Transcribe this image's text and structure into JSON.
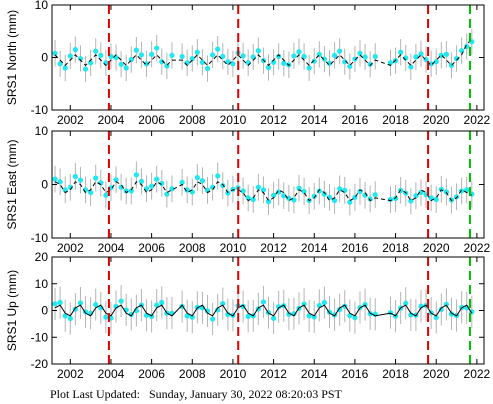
{
  "chart_data": [
    {
      "type": "scatter",
      "ylabel": "SRS1 North (mm)",
      "x": [
        2001.25,
        2001.5,
        2001.75,
        2002,
        2002.25,
        2002.5,
        2002.75,
        2003,
        2003.25,
        2003.5,
        2003.75,
        2004,
        2004.25,
        2004.5,
        2004.75,
        2005,
        2005.25,
        2005.5,
        2005.75,
        2006,
        2006.25,
        2006.5,
        2006.75,
        2007,
        2007.5,
        2007.75,
        2008,
        2008.25,
        2008.5,
        2008.75,
        2009,
        2009.25,
        2009.5,
        2009.75,
        2010,
        2010.25,
        2010.5,
        2010.75,
        2011,
        2011.25,
        2011.5,
        2011.75,
        2012,
        2012.25,
        2012.5,
        2012.75,
        2013,
        2013.25,
        2013.5,
        2013.75,
        2014,
        2014.25,
        2014.5,
        2014.75,
        2015,
        2015.25,
        2015.5,
        2015.75,
        2016,
        2016.25,
        2016.5,
        2016.75,
        2017,
        2017.75,
        2018,
        2018.25,
        2018.5,
        2018.75,
        2019,
        2019.25,
        2019.5,
        2019.75,
        2020,
        2020.25,
        2020.5,
        2020.75,
        2021,
        2021.25,
        2021.5,
        2021.75
      ],
      "xlim": [
        2001.1,
        2022.35
      ],
      "xticks": [
        2002,
        2004,
        2006,
        2008,
        2010,
        2012,
        2014,
        2016,
        2018,
        2020,
        2022
      ],
      "ylim": [
        -10,
        10
      ],
      "yticks": [
        -10,
        0,
        10
      ],
      "series": [
        {
          "color": "#1ee8f0",
          "error": 2.5,
          "error_color": "#b4b4b4",
          "values": [
            0.8,
            -1.2,
            -2.0,
            0.3,
            1.5,
            -0.2,
            -2.2,
            -1.0,
            1.2,
            0.4,
            -1.0,
            0.2,
            0.0,
            -1.3,
            -2.0,
            -0.4,
            1.4,
            0.5,
            -1.2,
            0.6,
            1.8,
            -0.8,
            -1.6,
            0.4,
            0.2,
            -1.0,
            -0.2,
            1.0,
            -0.9,
            -2.1,
            0.5,
            1.6,
            0.2,
            -0.8,
            -1.2,
            0.9,
            0.3,
            -1.0,
            0.1,
            1.3,
            -0.6,
            -1.9,
            -0.9,
            0.2,
            -1.1,
            -1.4,
            0.3,
            1.1,
            0.2,
            -2.0,
            -0.7,
            0.6,
            -0.3,
            -1.1,
            0.4,
            1.2,
            -0.8,
            -1.7,
            -0.3,
            0.8,
            0.1,
            -1.3,
            0.2,
            -1.0,
            -0.6,
            1.0,
            -0.1,
            -1.8,
            0.1,
            0.7,
            -0.4,
            -1.2,
            -0.8,
            0.4,
            0.6,
            -1.5,
            -0.2,
            1.3,
            2.1,
            3.0
          ]
        },
        {
          "type": "line",
          "color": "#000000",
          "dashed": true,
          "values": [
            0.5,
            -0.5,
            -1.5,
            -0.5,
            0.5,
            -0.5,
            -1.5,
            -0.5,
            0.5,
            -0.5,
            -1.5,
            -0.5,
            0.5,
            -0.5,
            -1.5,
            -0.5,
            0.5,
            -0.5,
            -1.5,
            -0.5,
            0.5,
            -0.5,
            -1.5,
            -0.5,
            -0.5,
            -1.5,
            -0.5,
            0.5,
            -0.5,
            -1.5,
            -0.5,
            0.5,
            -0.5,
            -1.5,
            -0.5,
            0.5,
            -0.5,
            -1.5,
            -0.5,
            0.5,
            -0.5,
            -1.5,
            -0.5,
            0.5,
            -0.5,
            -1.5,
            -0.5,
            0.5,
            -0.5,
            -1.5,
            -0.5,
            0.5,
            -0.5,
            -1.5,
            -0.5,
            0.5,
            -0.5,
            -1.5,
            -0.5,
            0.5,
            -0.5,
            -1.5,
            -0.5,
            -1.5,
            -0.5,
            0.5,
            -0.5,
            -1.5,
            -0.5,
            0.5,
            -0.5,
            -1.5,
            -0.5,
            0.5,
            -0.5,
            -1.5,
            -0.5,
            0.5,
            2.5,
            3.5
          ]
        }
      ],
      "events": [
        {
          "x": 2003.9,
          "color": "#e00000"
        },
        {
          "x": 2010.26,
          "color": "#e00000"
        },
        {
          "x": 2019.6,
          "color": "#e00000"
        },
        {
          "x": 2021.66,
          "color": "#00c000"
        }
      ]
    },
    {
      "type": "scatter",
      "ylabel": "SRS1 East (mm)",
      "x": [
        2001.25,
        2001.5,
        2001.75,
        2002,
        2002.25,
        2002.5,
        2002.75,
        2003,
        2003.25,
        2003.5,
        2003.75,
        2004,
        2004.25,
        2004.5,
        2004.75,
        2005,
        2005.25,
        2005.5,
        2005.75,
        2006,
        2006.25,
        2006.5,
        2006.75,
        2007,
        2007.5,
        2007.75,
        2008,
        2008.25,
        2008.5,
        2008.75,
        2009,
        2009.25,
        2009.5,
        2009.75,
        2010,
        2010.25,
        2010.5,
        2010.75,
        2011,
        2011.25,
        2011.5,
        2011.75,
        2012,
        2012.25,
        2012.5,
        2012.75,
        2013,
        2013.25,
        2013.5,
        2013.75,
        2014,
        2014.25,
        2014.5,
        2014.75,
        2015,
        2015.25,
        2015.5,
        2015.75,
        2016,
        2016.25,
        2016.5,
        2016.75,
        2017,
        2017.75,
        2018,
        2018.25,
        2018.5,
        2018.75,
        2019,
        2019.25,
        2019.5,
        2019.75,
        2020,
        2020.25,
        2020.5,
        2020.75,
        2021,
        2021.25,
        2021.5,
        2021.75
      ],
      "xlim": [
        2001.1,
        2022.35
      ],
      "xticks": [
        2002,
        2004,
        2006,
        2008,
        2010,
        2012,
        2014,
        2016,
        2018,
        2020,
        2022
      ],
      "ylim": [
        -10,
        10
      ],
      "yticks": [
        -10,
        0,
        10
      ],
      "series": [
        {
          "color": "#1ee8f0",
          "error": 2.5,
          "error_color": "#b4b4b4",
          "values": [
            1.0,
            0.5,
            -1.0,
            -0.5,
            1.5,
            0.8,
            -1.0,
            -1.5,
            1.2,
            0.3,
            -2.0,
            -0.6,
            0.9,
            -0.5,
            -1.2,
            -1.2,
            1.8,
            0.6,
            -0.8,
            -0.3,
            1.0,
            0.2,
            -1.8,
            -0.8,
            0.4,
            -1.0,
            -1.4,
            1.3,
            0.7,
            -1.1,
            -0.5,
            1.6,
            -0.2,
            -1.6,
            -0.9,
            -0.6,
            -1.2,
            -2.5,
            -2.8,
            -0.5,
            -1.0,
            -3.2,
            -2.0,
            -1.4,
            -2.1,
            -2.6,
            -2.9,
            -0.7,
            -1.3,
            -3.0,
            -2.2,
            -1.2,
            -1.8,
            -2.4,
            -3.0,
            -0.8,
            -1.1,
            -3.3,
            -2.4,
            -1.3,
            -2.0,
            -2.7,
            -1.9,
            -2.8,
            -2.6,
            -1.1,
            -1.6,
            -3.1,
            -2.1,
            -1.5,
            -1.9,
            -2.5,
            -2.8,
            -0.9,
            -1.4,
            -2.9,
            -2.3,
            -1.2,
            -1.0,
            -1.8
          ]
        },
        {
          "type": "line",
          "color": "#000000",
          "dashed": true,
          "values": [
            0.5,
            0,
            -1.5,
            -1,
            0.5,
            0,
            -1.5,
            -1,
            0.5,
            0,
            -1.5,
            -1,
            0.5,
            0,
            -1.5,
            -1,
            0.5,
            0,
            -1.5,
            -1,
            0.5,
            0,
            -1.5,
            -1,
            0,
            -1.5,
            -1,
            0.5,
            0,
            -1.5,
            -1,
            0.5,
            0,
            -1.5,
            -1,
            -1,
            -1.5,
            -3,
            -2.5,
            -1,
            -1.5,
            -3,
            -2.5,
            -1,
            -1.5,
            -3,
            -2.5,
            -1,
            -1.5,
            -3,
            -2.5,
            -1,
            -1.5,
            -3,
            -2.5,
            -1,
            -1.5,
            -3,
            -2.5,
            -1,
            -1.5,
            -3,
            -2.5,
            -3,
            -2.5,
            -1,
            -1.5,
            -3,
            -2.5,
            -1,
            -1.5,
            -3,
            -2.5,
            -1,
            -1.5,
            -3,
            -2.5,
            -1,
            -1.5,
            -2
          ]
        }
      ],
      "events": [
        {
          "x": 2003.9,
          "color": "#e00000"
        },
        {
          "x": 2010.26,
          "color": "#e00000"
        },
        {
          "x": 2019.6,
          "color": "#e00000"
        },
        {
          "x": 2021.66,
          "color": "#00c000"
        }
      ]
    },
    {
      "type": "scatter",
      "ylabel": "SRS1 Up (mm)",
      "x": [
        2001.25,
        2001.5,
        2001.75,
        2002,
        2002.25,
        2002.5,
        2002.75,
        2003,
        2003.25,
        2003.5,
        2003.75,
        2004,
        2004.25,
        2004.5,
        2004.75,
        2005,
        2005.25,
        2005.5,
        2005.75,
        2006,
        2006.25,
        2006.5,
        2006.75,
        2007,
        2007.5,
        2007.75,
        2008,
        2008.25,
        2008.5,
        2008.75,
        2009,
        2009.25,
        2009.5,
        2009.75,
        2010,
        2010.25,
        2010.5,
        2010.75,
        2011,
        2011.25,
        2011.5,
        2011.75,
        2012,
        2012.25,
        2012.5,
        2012.75,
        2013,
        2013.25,
        2013.5,
        2013.75,
        2014,
        2014.25,
        2014.5,
        2014.75,
        2015,
        2015.25,
        2015.5,
        2015.75,
        2016,
        2016.25,
        2016.5,
        2016.75,
        2017,
        2017.75,
        2018,
        2018.25,
        2018.5,
        2018.75,
        2019,
        2019.25,
        2019.5,
        2019.75,
        2020,
        2020.25,
        2020.5,
        2020.75,
        2021,
        2021.25,
        2021.5,
        2021.75
      ],
      "xlim": [
        2001.1,
        2022.35
      ],
      "xticks": [
        2002,
        2004,
        2006,
        2008,
        2010,
        2012,
        2014,
        2016,
        2018,
        2020,
        2022
      ],
      "ylim": [
        -20,
        20
      ],
      "yticks": [
        -20,
        -10,
        0,
        10,
        20
      ],
      "series": [
        {
          "color": "#1ee8f0",
          "error": 6,
          "error_color": "#b4b4b4",
          "values": [
            2.5,
            3.0,
            -2.0,
            -3.0,
            0.5,
            2.8,
            -0.5,
            -1.0,
            2.2,
            1.0,
            -2.5,
            -2.8,
            1.5,
            3.5,
            0.2,
            -1.5,
            0.0,
            2.0,
            -1.8,
            -2.2,
            2.0,
            3.0,
            -1.0,
            -1.0,
            1.5,
            -2.0,
            -2.5,
            1.2,
            1.0,
            -0.2,
            -3.2,
            0.2,
            2.6,
            -1.5,
            -1.8,
            1.8,
            1.5,
            -2.2,
            -2.0,
            0.6,
            3.2,
            -0.8,
            -2.9,
            1.4,
            1.8,
            -1.4,
            -1.2,
            0.8,
            2.4,
            -2.0,
            -2.4,
            1.9,
            3.0,
            -0.6,
            -1.6,
            0.3,
            1.6,
            -1.9,
            -2.7,
            1.1,
            2.2,
            -1.2,
            -1.4,
            -0.8,
            -2.1,
            0.9,
            2.7,
            -1.6,
            -1.7,
            1.6,
            1.9,
            -0.9,
            -2.6,
            0.4,
            2.3,
            -1.3,
            -1.9,
            1.2,
            1.0,
            -0.5
          ]
        },
        {
          "type": "line",
          "color": "#000000",
          "dashed": false,
          "values": [
            1,
            2,
            -1,
            -2,
            1,
            2,
            -1,
            -2,
            1,
            2,
            -1,
            -2,
            1,
            2,
            -1,
            -2,
            1,
            2,
            -1,
            -2,
            1,
            2,
            -1,
            -2,
            2,
            -1,
            -2,
            1,
            2,
            -1,
            -2,
            1,
            2,
            -1,
            -2,
            1,
            2,
            -1,
            -2,
            1,
            2,
            -1,
            -2,
            1,
            2,
            -1,
            -2,
            1,
            2,
            -1,
            -2,
            1,
            2,
            -1,
            -2,
            1,
            2,
            -1,
            -2,
            1,
            2,
            -1,
            -2,
            -1,
            -2,
            1,
            2,
            -1,
            -2,
            1,
            2,
            -1,
            -2,
            1,
            2,
            -1,
            -2,
            1,
            2,
            -1
          ]
        }
      ],
      "events": [
        {
          "x": 2003.9,
          "color": "#e00000"
        },
        {
          "x": 2010.26,
          "color": "#e00000"
        },
        {
          "x": 2019.6,
          "color": "#e00000"
        },
        {
          "x": 2021.66,
          "color": "#00c000"
        }
      ]
    }
  ],
  "footer": "Plot Last Updated:   Sunday, January 30, 2022 08:20:03 PST"
}
